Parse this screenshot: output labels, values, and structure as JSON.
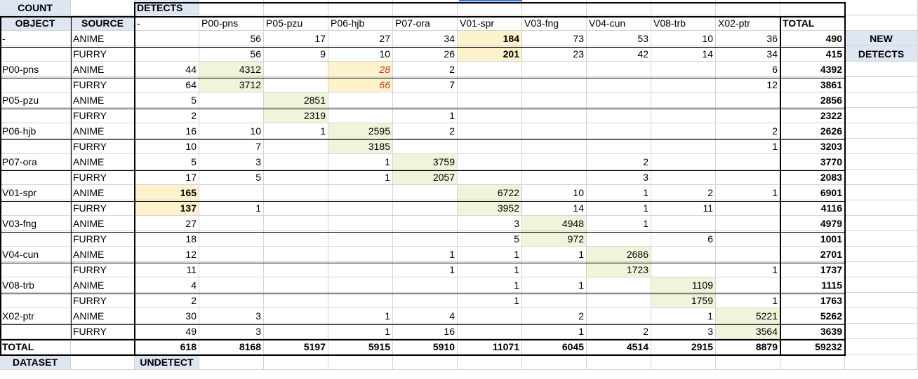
{
  "header": {
    "count": "COUNT",
    "object": "OBJECT",
    "source": "SOURCE",
    "detects": "DETECTS",
    "total": "TOTAL",
    "dash": "-",
    "new_1": "NEW",
    "new_2": "DETECTS",
    "dataset": "DATASET",
    "undetect": "UNDETECT"
  },
  "columns": [
    "-",
    "P00-pns",
    "P05-pzu",
    "P06-hjb",
    "P07-ora",
    "V01-spr",
    "V03-fng",
    "V04-cun",
    "V08-trb",
    "X02-ptr"
  ],
  "rows": [
    {
      "object": "-",
      "source": "ANIME",
      "values": [
        "",
        "56",
        "17",
        "27",
        "34",
        "184",
        "73",
        "53",
        "10",
        "36"
      ],
      "total": "490"
    },
    {
      "object": "",
      "source": "FURRY",
      "values": [
        "",
        "56",
        "9",
        "10",
        "26",
        "201",
        "23",
        "42",
        "14",
        "34"
      ],
      "total": "415"
    },
    {
      "object": "P00-pns",
      "source": "ANIME",
      "values": [
        "44",
        "4312",
        "",
        "28",
        "2",
        "",
        "",
        "",
        "",
        "6"
      ],
      "total": "4392"
    },
    {
      "object": "",
      "source": "FURRY",
      "values": [
        "64",
        "3712",
        "",
        "66",
        "7",
        "",
        "",
        "",
        "",
        "12"
      ],
      "total": "3861"
    },
    {
      "object": "P05-pzu",
      "source": "ANIME",
      "values": [
        "5",
        "",
        "2851",
        "",
        "",
        "",
        "",
        "",
        "",
        ""
      ],
      "total": "2856"
    },
    {
      "object": "",
      "source": "FURRY",
      "values": [
        "2",
        "",
        "2319",
        "",
        "1",
        "",
        "",
        "",
        "",
        ""
      ],
      "total": "2322"
    },
    {
      "object": "P06-hjb",
      "source": "ANIME",
      "values": [
        "16",
        "10",
        "1",
        "2595",
        "2",
        "",
        "",
        "",
        "",
        "2"
      ],
      "total": "2626"
    },
    {
      "object": "",
      "source": "FURRY",
      "values": [
        "10",
        "7",
        "",
        "3185",
        "",
        "",
        "",
        "",
        "",
        "1"
      ],
      "total": "3203"
    },
    {
      "object": "P07-ora",
      "source": "ANIME",
      "values": [
        "5",
        "3",
        "",
        "1",
        "3759",
        "",
        "",
        "2",
        "",
        ""
      ],
      "total": "3770"
    },
    {
      "object": "",
      "source": "FURRY",
      "values": [
        "17",
        "5",
        "",
        "1",
        "2057",
        "",
        "",
        "3",
        "",
        ""
      ],
      "total": "2083"
    },
    {
      "object": "V01-spr",
      "source": "ANIME",
      "values": [
        "165",
        "",
        "",
        "",
        "",
        "6722",
        "10",
        "1",
        "2",
        "1"
      ],
      "total": "6901"
    },
    {
      "object": "",
      "source": "FURRY",
      "values": [
        "137",
        "1",
        "",
        "",
        "",
        "3952",
        "14",
        "1",
        "11",
        ""
      ],
      "total": "4116"
    },
    {
      "object": "V03-fng",
      "source": "ANIME",
      "values": [
        "27",
        "",
        "",
        "",
        "",
        "3",
        "4948",
        "1",
        "",
        ""
      ],
      "total": "4979"
    },
    {
      "object": "",
      "source": "FURRY",
      "values": [
        "18",
        "",
        "",
        "",
        "",
        "5",
        "972",
        "",
        "6",
        ""
      ],
      "total": "1001"
    },
    {
      "object": "V04-cun",
      "source": "ANIME",
      "values": [
        "12",
        "",
        "",
        "",
        "1",
        "1",
        "1",
        "2686",
        "",
        ""
      ],
      "total": "2701"
    },
    {
      "object": "",
      "source": "FURRY",
      "values": [
        "11",
        "",
        "",
        "",
        "1",
        "1",
        "",
        "1723",
        "",
        "1"
      ],
      "total": "1737"
    },
    {
      "object": "V08-trb",
      "source": "ANIME",
      "values": [
        "4",
        "",
        "",
        "",
        "",
        "1",
        "1",
        "",
        "1109",
        ""
      ],
      "total": "1115"
    },
    {
      "object": "",
      "source": "FURRY",
      "values": [
        "2",
        "",
        "",
        "",
        "",
        "1",
        "",
        "",
        "1759",
        "1"
      ],
      "total": "1763"
    },
    {
      "object": "X02-ptr",
      "source": "ANIME",
      "values": [
        "30",
        "3",
        "",
        "1",
        "4",
        "",
        "2",
        "",
        "1",
        "5221"
      ],
      "total": "5262"
    },
    {
      "object": "",
      "source": "FURRY",
      "values": [
        "49",
        "3",
        "",
        "1",
        "16",
        "",
        "1",
        "2",
        "3",
        "3564"
      ],
      "total": "3639"
    }
  ],
  "totals": {
    "label": "TOTAL",
    "values": [
      "618",
      "8168",
      "5197",
      "5915",
      "5910",
      "11071",
      "6045",
      "4514",
      "2915",
      "8879"
    ],
    "grand": "59232"
  },
  "colors": {
    "header_fill": "#dde6f2",
    "diagonal_fill": "#eff5db",
    "highlight_fill": "#fdf2cc",
    "italic_red": "#c0392b",
    "gridline": "#d4d4d4",
    "selection_stripe": "#2f78d4"
  }
}
